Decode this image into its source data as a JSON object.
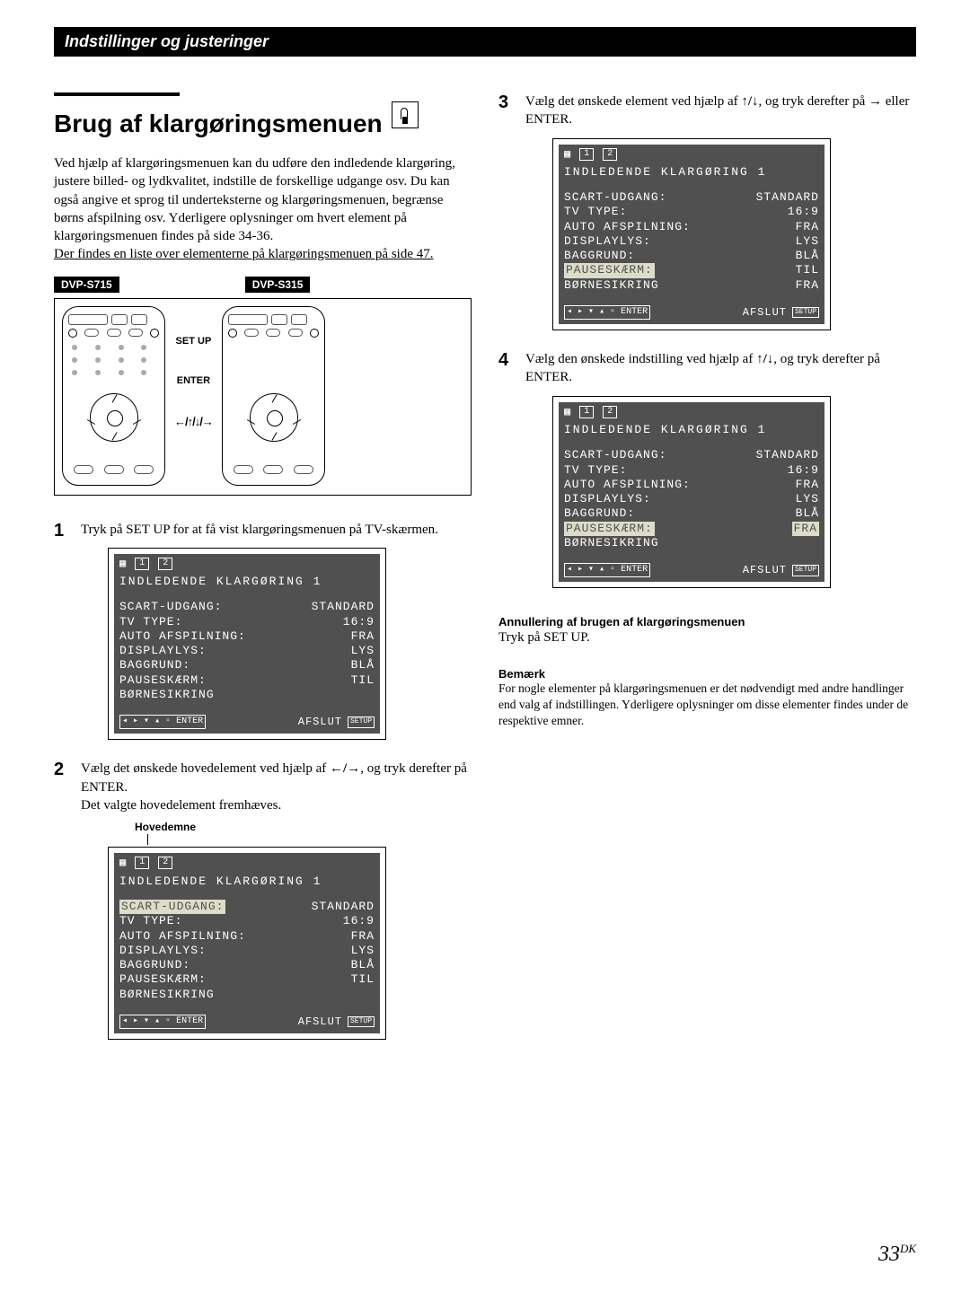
{
  "header": {
    "title": "Indstillinger og justeringer"
  },
  "main_title": "Brug af klargøringsmenuen",
  "intro": {
    "body": "Ved hjælp af klargøringsmenuen kan du udføre den indledende klargøring, justere billed- og lydkvalitet, indstille de forskellige udgange osv. Du kan også angive et sprog til underteksterne og klargøringsmenuen, begrænse børns afspilning osv. Yderligere oplysninger om hvert element på klargøringsmenuen findes på side 34-36.",
    "underline": "Der findes en liste over elementerne på klargøringsmenuen på side 47."
  },
  "models": {
    "left": "DVP-S715",
    "right": "DVP-S315"
  },
  "remote_labels": {
    "setup": "SET UP",
    "enter": "ENTER",
    "arrows": "←/↑/↓/→"
  },
  "steps": {
    "s1": "Tryk på SET UP for at få vist klargøringsmenuen på TV-skærmen.",
    "s2a": "Vælg det ønskede hovedelement ved hjælp af ",
    "s2b": ", og tryk derefter på ENTER.",
    "s2c": "Det valgte hovedelement fremhæves.",
    "s3a": "Vælg det ønskede element ved hjælp af ",
    "s3b": ", og tryk derefter på ",
    "s3c": " eller ENTER.",
    "s4a": "Vælg den ønskede indstilling ved hjælp af ",
    "s4b": ", og tryk derefter på ENTER."
  },
  "hovedemne_label": "Hovedemne",
  "osd": {
    "tabs": {
      "t1": "1",
      "t2": "2"
    },
    "title": "INDLEDENDE KLARGØRING 1",
    "rows": [
      {
        "label": "SCART-UDGANG:",
        "val": "STANDARD"
      },
      {
        "label": "TV TYPE:",
        "val": "16:9"
      },
      {
        "label": "AUTO AFSPILNING:",
        "val": "FRA"
      },
      {
        "label": "DISPLAYLYS:",
        "val": "LYS"
      },
      {
        "label": "BAGGRUND:",
        "val": "BLÅ"
      },
      {
        "label": "PAUSESKÆRM:",
        "val": "TIL"
      },
      {
        "label": "BØRNESIKRING",
        "val": ""
      }
    ],
    "afslut": "AFSLUT",
    "setup": "SETUP",
    "nav": "◂ ▸ ▾ ▴ ▫ ENTER"
  },
  "osd3_vals": {
    "pauseskaerm": "TIL",
    "bornesikring_val": "FRA"
  },
  "osd4_vals": {
    "pauseskaerm": "FRA"
  },
  "annul": {
    "heading": "Annullering af brugen af klargøringsmenuen",
    "text": "Tryk på SET UP."
  },
  "note": {
    "heading": "Bemærk",
    "text": "For nogle elementer på klargøringsmenuen er det nødvendigt med andre handlinger end valg af indstillingen.  Yderligere oplysninger om disse elementer findes under de respektive emner."
  },
  "page": {
    "num": "33",
    "suffix": "DK"
  },
  "arrows": {
    "leftright": "←/→",
    "updown": "↑/↓",
    "right": "→"
  },
  "colors": {
    "osd_bg": "#505050",
    "osd_hl": "#dcdcc8",
    "black": "#000000"
  }
}
